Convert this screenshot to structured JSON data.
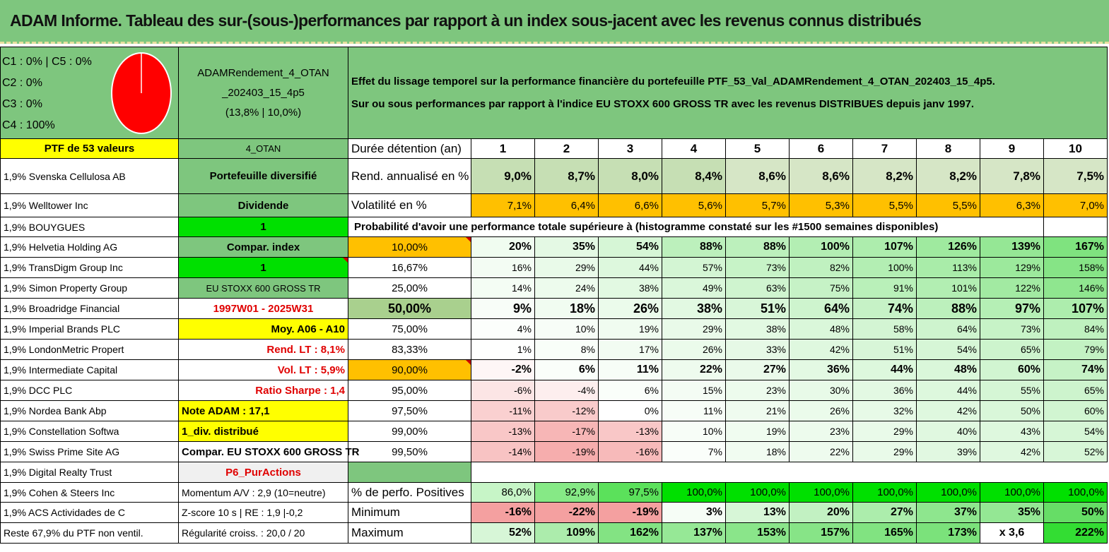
{
  "title": "ADAM Informe. Tableau des sur-(sous-)performances par rapport à un index sous-jacent avec les revenus connus distribués",
  "allocation": [
    "C1 : 0% | C5 : 0%",
    "C2 : 0%",
    "C3 : 0%",
    "C4 : 100%"
  ],
  "pie_color": "#ff0000",
  "fund": {
    "name_line1": "ADAMRendement_4_OTAN",
    "name_line2": "_202403_15_4p5",
    "perf": "(13,8% | 10,0%)"
  },
  "description": {
    "line1": "Effet du lissage temporel sur la performance financière du portefeuille PTF_53_Val_ADAMRendement_4_OTAN_202403_15_4p5.",
    "line2": "Sur ou sous performances par rapport à l'indice EU STOXX 600 GROSS TR avec les revenus DISTRIBUES depuis janv 1997."
  },
  "header_row": {
    "ptf": "PTF de 53 valeurs",
    "code": "4_OTAN",
    "label": "Durée détention (an)",
    "years": [
      "1",
      "2",
      "3",
      "4",
      "5",
      "6",
      "7",
      "8",
      "9",
      "10"
    ]
  },
  "holdings": [
    "1,9% Svenska Cellulosa AB",
    "1,9% Welltower Inc",
    "1,9% BOUYGUES",
    "1,9% Helvetia Holding AG",
    "1,9% TransDigm Group Inc",
    "1,9% Simon Property Group",
    "1,9% Broadridge Financial",
    "1,9% Imperial Brands PLC",
    "1,9% LondonMetric Propert",
    "1,9% Intermediate Capital",
    "1,9% DCC PLC",
    "1,9% Nordea Bank Abp",
    "1,9% Constellation Softwa",
    "1,9% Swiss Prime Site AG",
    "1,9% Digital Realty Trust",
    "1,9% Cohen & Steers Inc",
    "1,9% ACS Actividades de C",
    "Reste 67,9% du PTF non ventil."
  ],
  "info_column": [
    "Portefeuille diversifié",
    "Dividende",
    "1",
    "Compar. index",
    "1",
    "EU STOXX 600 GROSS TR",
    "1997W01 - 2025W31",
    "Moy. A06 - A10",
    "Rend. LT : 8,1%",
    "Vol. LT : 5,9%",
    "Ratio Sharpe : 1,4",
    "Note ADAM : 17,1",
    "1_div. distribué",
    "Compar. EU STOXX 600 GROSS TR",
    "P6_PurActions",
    "Momentum A/V : 2,9 (10=neutre)",
    "Z-score 10 s | RE : 1,9 |-0,2",
    "Régularité croiss. : 20,0 / 20"
  ],
  "rend": {
    "label": "Rend. annualisé en %",
    "values": [
      "9,0%",
      "8,7%",
      "8,0%",
      "8,4%",
      "8,6%",
      "8,6%",
      "8,2%",
      "8,2%",
      "7,8%",
      "7,5%"
    ]
  },
  "vol": {
    "label": "Volatilité en %",
    "values": [
      "7,1%",
      "6,4%",
      "6,6%",
      "5,6%",
      "5,7%",
      "5,3%",
      "5,5%",
      "5,5%",
      "6,3%",
      "7,0%"
    ]
  },
  "prob_title": "Probabilité d'avoir une performance totale supérieure à (histogramme constaté sur les #1500 semaines disponibles)",
  "prob_rows": [
    {
      "p": "10,00%",
      "v": [
        "20%",
        "35%",
        "54%",
        "88%",
        "88%",
        "100%",
        "107%",
        "126%",
        "139%",
        "167%"
      ]
    },
    {
      "p": "16,67%",
      "v": [
        "16%",
        "29%",
        "44%",
        "57%",
        "73%",
        "82%",
        "100%",
        "113%",
        "129%",
        "158%"
      ]
    },
    {
      "p": "25,00%",
      "v": [
        "14%",
        "24%",
        "38%",
        "49%",
        "63%",
        "75%",
        "91%",
        "101%",
        "122%",
        "146%"
      ]
    },
    {
      "p": "50,00%",
      "v": [
        "9%",
        "18%",
        "26%",
        "38%",
        "51%",
        "64%",
        "74%",
        "88%",
        "97%",
        "107%"
      ]
    },
    {
      "p": "75,00%",
      "v": [
        "4%",
        "10%",
        "19%",
        "29%",
        "38%",
        "48%",
        "58%",
        "64%",
        "73%",
        "84%"
      ]
    },
    {
      "p": "83,33%",
      "v": [
        "1%",
        "8%",
        "17%",
        "26%",
        "33%",
        "42%",
        "51%",
        "54%",
        "65%",
        "79%"
      ]
    },
    {
      "p": "90,00%",
      "v": [
        "-2%",
        "6%",
        "11%",
        "22%",
        "27%",
        "36%",
        "44%",
        "48%",
        "60%",
        "74%"
      ]
    },
    {
      "p": "95,00%",
      "v": [
        "-6%",
        "-4%",
        "6%",
        "15%",
        "23%",
        "30%",
        "36%",
        "44%",
        "55%",
        "65%"
      ]
    },
    {
      "p": "97,50%",
      "v": [
        "-11%",
        "-12%",
        "0%",
        "11%",
        "21%",
        "26%",
        "32%",
        "42%",
        "50%",
        "60%"
      ]
    },
    {
      "p": "99,00%",
      "v": [
        "-13%",
        "-17%",
        "-13%",
        "10%",
        "19%",
        "23%",
        "29%",
        "40%",
        "43%",
        "54%"
      ]
    },
    {
      "p": "99,50%",
      "v": [
        "-14%",
        "-19%",
        "-16%",
        "7%",
        "18%",
        "22%",
        "29%",
        "39%",
        "42%",
        "52%"
      ]
    }
  ],
  "positives": {
    "label": "% de perfo. Positives",
    "values": [
      "86,0%",
      "92,9%",
      "97,5%",
      "100,0%",
      "100,0%",
      "100,0%",
      "100,0%",
      "100,0%",
      "100,0%",
      "100,0%"
    ]
  },
  "minimum": {
    "label": "Minimum",
    "values": [
      "-16%",
      "-22%",
      "-19%",
      "3%",
      "13%",
      "20%",
      "27%",
      "37%",
      "35%",
      "50%"
    ]
  },
  "maximum": {
    "label": "Maximum",
    "values": [
      "52%",
      "109%",
      "162%",
      "137%",
      "153%",
      "157%",
      "165%",
      "173%",
      "x 3,6",
      "222%"
    ]
  }
}
